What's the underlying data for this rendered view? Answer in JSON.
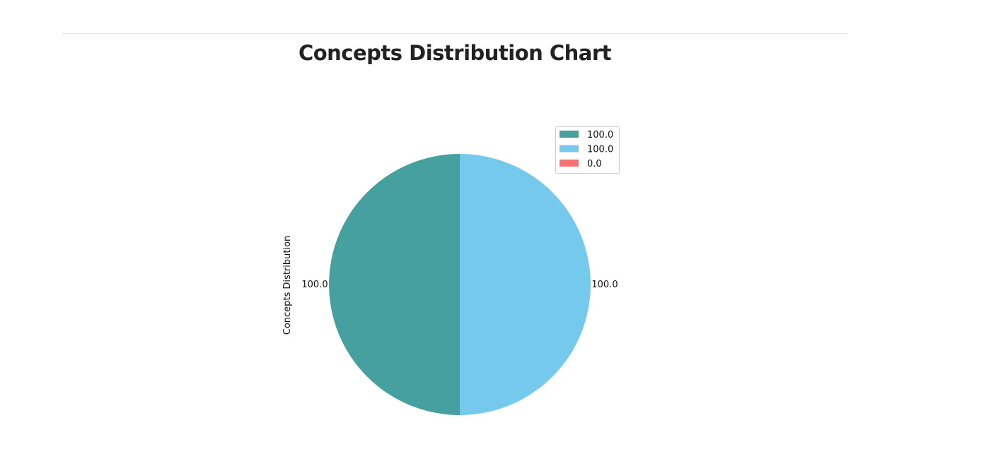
{
  "page": {
    "title": "Concepts Distribution Chart"
  },
  "chart_data": {
    "type": "pie",
    "title": "Concepts Distribution Chart",
    "ylabel": "Concepts Distribution",
    "slices": [
      {
        "label": "100.0",
        "value": 100.0,
        "color": "#47a0a0"
      },
      {
        "label": "100.0",
        "value": 100.0,
        "color": "#74c9ed"
      },
      {
        "label": "0.0",
        "value": 0.0,
        "color": "#f77272"
      }
    ],
    "legend": {
      "placement": "top-right",
      "entries": [
        "100.0",
        "100.0",
        "0.0"
      ]
    },
    "data_labels": [
      "100.0",
      "100.0"
    ]
  }
}
